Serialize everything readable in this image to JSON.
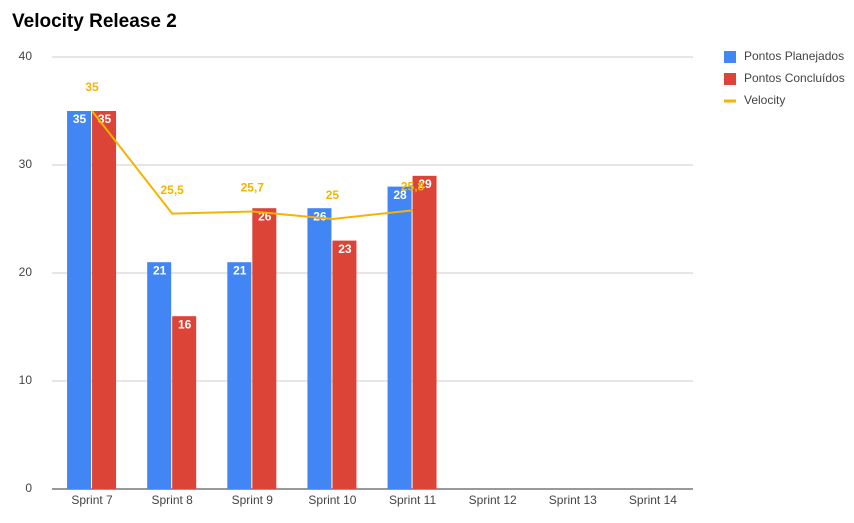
{
  "chart_data": {
    "type": "bar",
    "title": "Velocity Release 2",
    "categories": [
      "Sprint 7",
      "Sprint 8",
      "Sprint 9",
      "Sprint 10",
      "Sprint 11",
      "Sprint 12",
      "Sprint 13",
      "Sprint 14"
    ],
    "series": [
      {
        "name": "Pontos Planejados",
        "type": "bar",
        "color": "#4285f4",
        "values": [
          35,
          21,
          21,
          26,
          28,
          null,
          null,
          null
        ]
      },
      {
        "name": "Pontos Concluídos",
        "type": "bar",
        "color": "#db4437",
        "values": [
          35,
          16,
          26,
          23,
          29,
          null,
          null,
          null
        ]
      },
      {
        "name": "Velocity",
        "type": "line",
        "color": "#f4b400",
        "values": [
          35,
          25.5,
          25.7,
          25,
          25.8,
          null,
          null,
          null
        ],
        "value_labels": [
          "35",
          "25,5",
          "25,7",
          "25",
          "25,8",
          null,
          null,
          null
        ]
      }
    ],
    "ylim": [
      0,
      40
    ],
    "yticks": [
      0,
      10,
      20,
      30,
      40
    ],
    "grid": true,
    "legend": "right"
  }
}
